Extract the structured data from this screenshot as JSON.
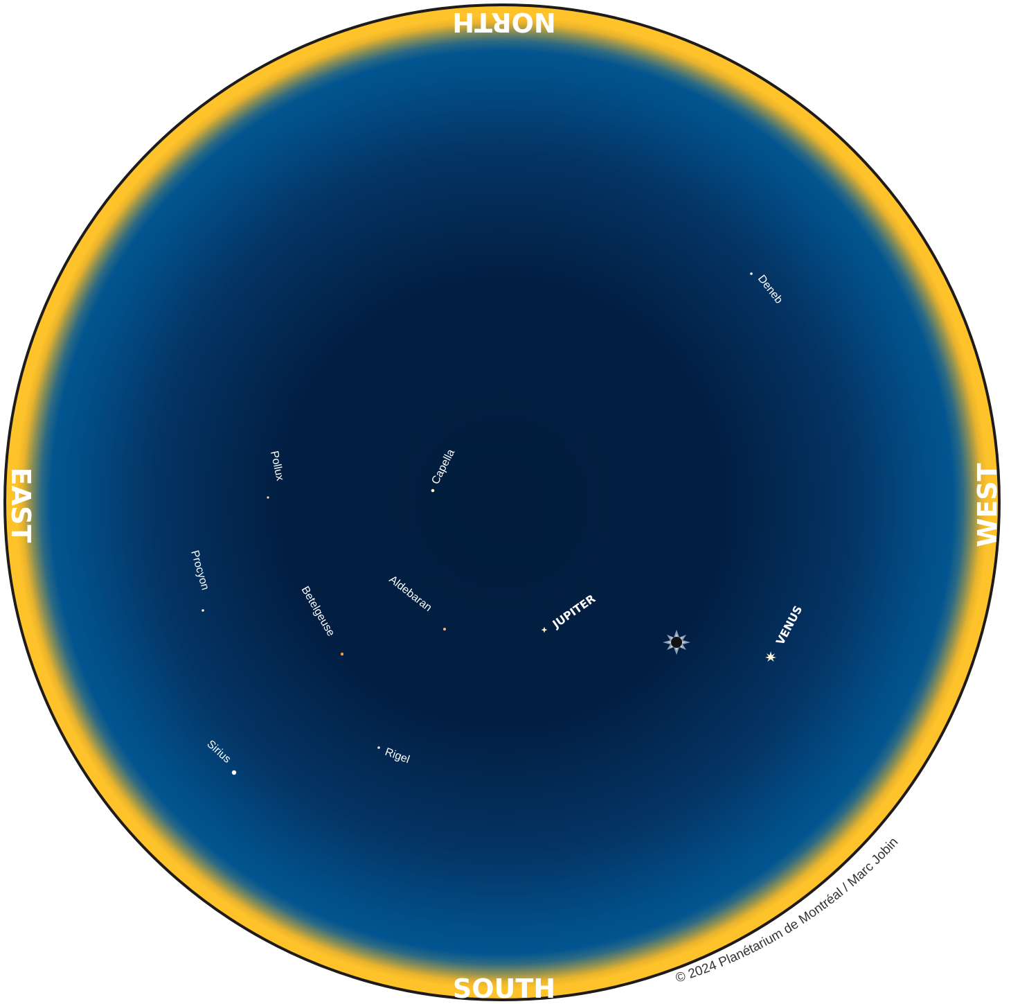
{
  "directions": {
    "north": "NORTH",
    "south": "SOUTH",
    "east": "EAST",
    "west": "WEST"
  },
  "stars": [
    {
      "id": "deneb",
      "name": "Deneb",
      "color": "#ffffff"
    },
    {
      "id": "capella",
      "name": "Capella",
      "color": "#fff6c8"
    },
    {
      "id": "pollux",
      "name": "Pollux",
      "color": "#ffd9a0"
    },
    {
      "id": "procyon",
      "name": "Procyon",
      "color": "#fff3d6"
    },
    {
      "id": "betelgeuse",
      "name": "Betelgeuse",
      "color": "#ff9a3c"
    },
    {
      "id": "aldebaran",
      "name": "Aldebaran",
      "color": "#ffb070"
    },
    {
      "id": "rigel",
      "name": "Rigel",
      "color": "#dfe8ff"
    },
    {
      "id": "sirius",
      "name": "Sirius",
      "color": "#ffffff"
    }
  ],
  "planets": [
    {
      "id": "jupiter",
      "name": "JUPITER",
      "color": "#fff2c0"
    },
    {
      "id": "venus",
      "name": "VENUS",
      "color": "#fff4d0"
    }
  ],
  "eclipsed_sun": {
    "icon": "eclipsed-sun-icon"
  },
  "colors": {
    "sky_center": "#011c3c",
    "sky_edge": "#02558f",
    "horizon": "#fec22a",
    "rim": "#1e1b18"
  },
  "copyright": "© 2024 Planétarium de Montréal / Marc Jobin"
}
